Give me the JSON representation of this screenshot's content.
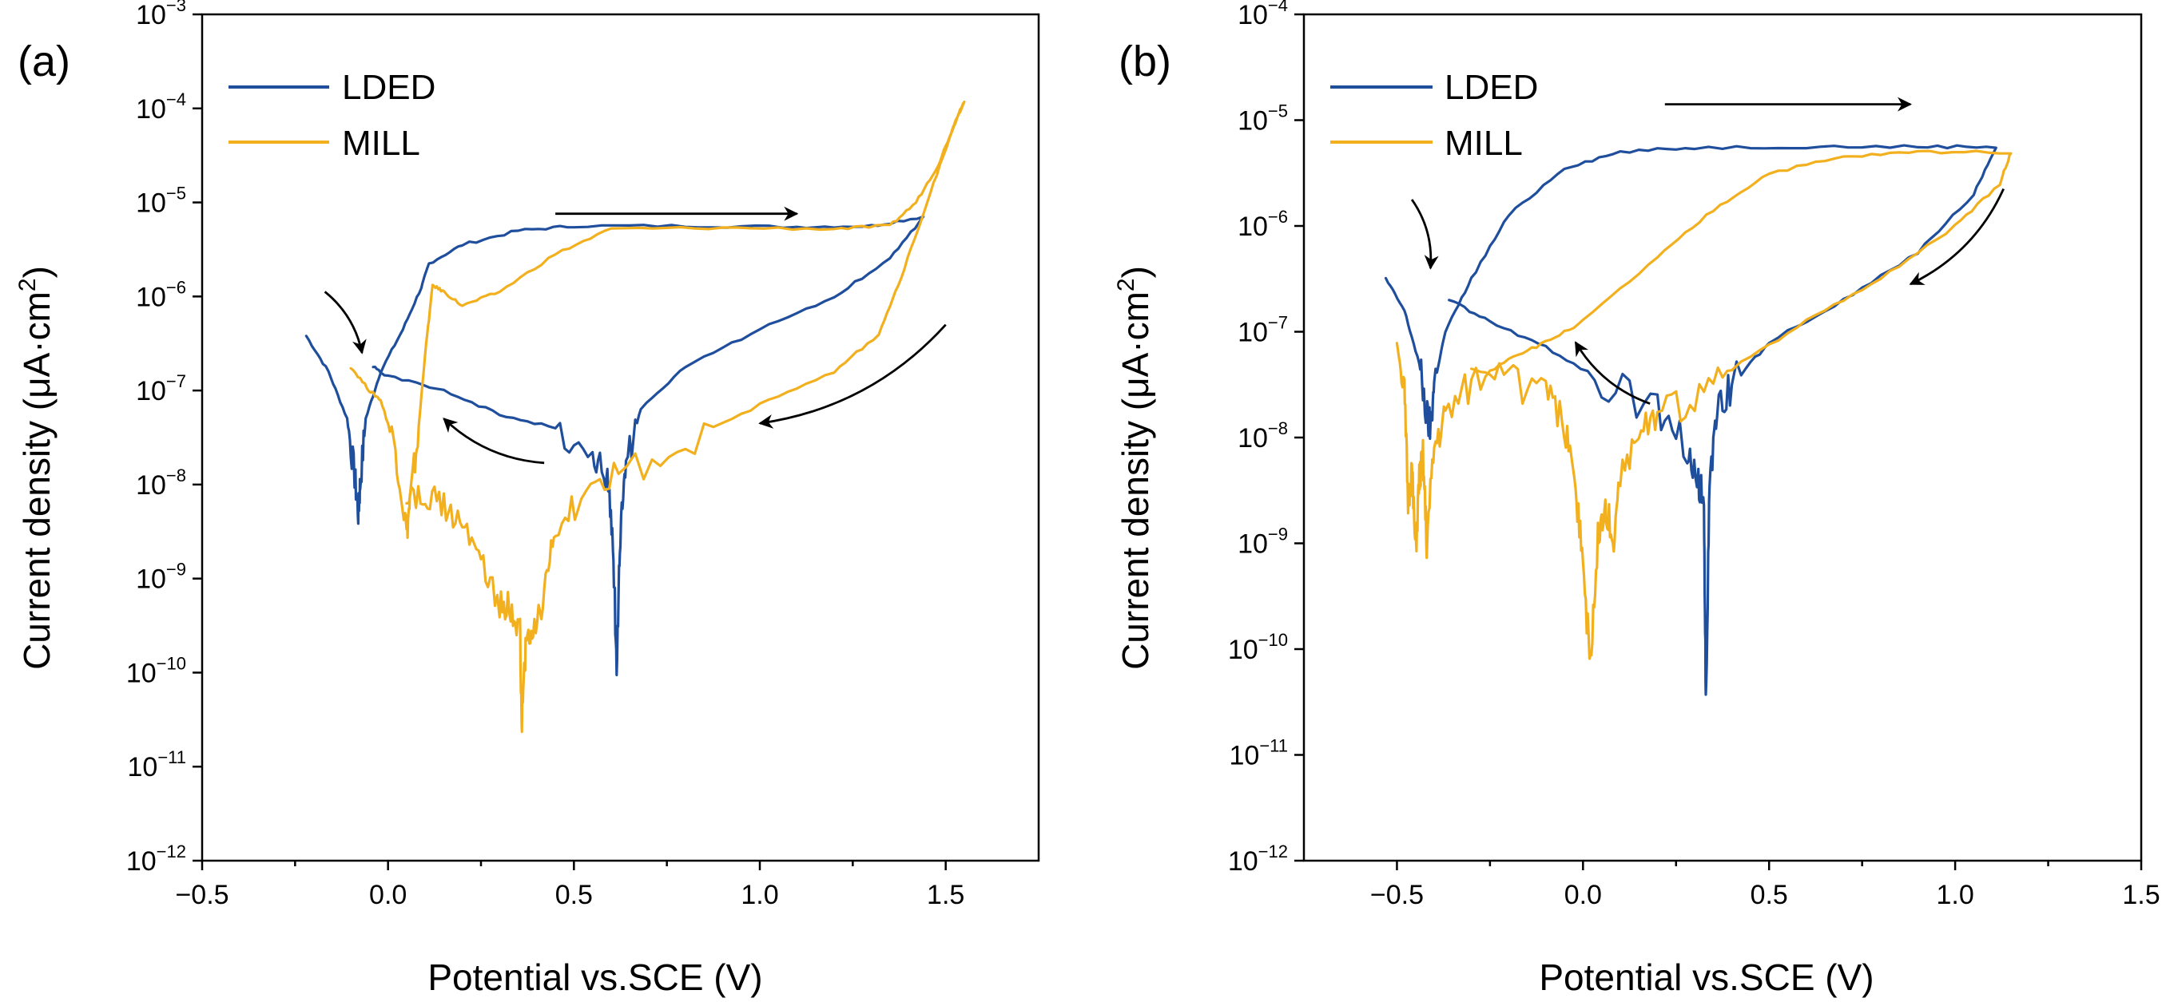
{
  "colors": {
    "LDED": "#1f4e9c",
    "MILL": "#f2b01e",
    "axis": "#000000"
  },
  "chart_data": [
    {
      "type": "line",
      "panel_label": "(a)",
      "xlabel": "Potential vs.SCE (V)",
      "ylabel": "Current density (μA·cm²)",
      "ylabel_main": "Current density (μA·cm",
      "ylabel_exp": "2",
      "ylabel_end": ")",
      "xscale": "linear",
      "yscale": "log",
      "xlim": [
        -0.5,
        1.75
      ],
      "ylim": [
        -12,
        -3
      ],
      "xticks": [
        -0.5,
        0.0,
        0.5,
        1.0,
        1.5
      ],
      "xtick_labels": [
        "−0.5",
        "0.0",
        "0.5",
        "1.0",
        "1.5"
      ],
      "yticks": [
        -12,
        -11,
        -10,
        -9,
        -8,
        -7,
        -6,
        -5,
        -4,
        -3
      ],
      "ytick_labels": [
        {
          "base": "10",
          "exp": "−12"
        },
        {
          "base": "10",
          "exp": "−11"
        },
        {
          "base": "10",
          "exp": "−10"
        },
        {
          "base": "10",
          "exp": "−9"
        },
        {
          "base": "10",
          "exp": "−8"
        },
        {
          "base": "10",
          "exp": "−7"
        },
        {
          "base": "10",
          "exp": "−6"
        },
        {
          "base": "10",
          "exp": "−5"
        },
        {
          "base": "10",
          "exp": "−4"
        },
        {
          "base": "10",
          "exp": "−3"
        }
      ],
      "legend": [
        "LDED",
        "MILL"
      ],
      "legend_loc": "top-left",
      "series": [
        {
          "name": "LDED",
          "color": "#1f4e9c",
          "points": [
            [
              -0.22,
              -6.42
            ],
            [
              -0.16,
              -6.8
            ],
            [
              -0.11,
              -7.3
            ],
            [
              -0.09,
              -7.9
            ],
            [
              -0.08,
              -8.3
            ],
            [
              -0.075,
              -8.0
            ],
            [
              -0.06,
              -7.3
            ],
            [
              -0.02,
              -6.8
            ],
            [
              0.04,
              -6.35
            ],
            [
              0.09,
              -5.9
            ],
            [
              0.11,
              -5.65
            ],
            [
              0.2,
              -5.45
            ],
            [
              0.35,
              -5.3
            ],
            [
              0.5,
              -5.25
            ],
            [
              0.8,
              -5.25
            ],
            [
              1.1,
              -5.26
            ],
            [
              1.3,
              -5.25
            ],
            [
              1.44,
              -5.15
            ],
            [
              1.35,
              -5.6
            ],
            [
              1.2,
              -6.0
            ],
            [
              1.0,
              -6.35
            ],
            [
              0.8,
              -6.75
            ],
            [
              0.68,
              -7.2
            ],
            [
              0.64,
              -7.8
            ],
            [
              0.625,
              -8.5
            ],
            [
              0.615,
              -9.92
            ],
            [
              0.605,
              -8.6
            ],
            [
              0.59,
              -7.95
            ],
            [
              0.55,
              -7.65
            ],
            [
              0.45,
              -7.4
            ],
            [
              0.3,
              -7.25
            ],
            [
              0.15,
              -7.0
            ],
            [
              0.0,
              -6.85
            ],
            [
              -0.04,
              -6.75
            ]
          ]
        },
        {
          "name": "MILL",
          "color": "#f2b01e",
          "points": [
            [
              -0.1,
              -6.75
            ],
            [
              -0.05,
              -7.0
            ],
            [
              -0.02,
              -7.1
            ],
            [
              0.02,
              -7.6
            ],
            [
              0.05,
              -8.5
            ],
            [
              0.06,
              -8.15
            ],
            [
              0.08,
              -7.5
            ],
            [
              0.1,
              -6.6
            ],
            [
              0.12,
              -5.88
            ],
            [
              0.15,
              -5.95
            ],
            [
              0.2,
              -6.1
            ],
            [
              0.3,
              -5.95
            ],
            [
              0.45,
              -5.55
            ],
            [
              0.6,
              -5.28
            ],
            [
              0.9,
              -5.27
            ],
            [
              1.2,
              -5.28
            ],
            [
              1.35,
              -5.25
            ],
            [
              1.42,
              -5.0
            ],
            [
              1.48,
              -4.6
            ],
            [
              1.52,
              -4.2
            ],
            [
              1.55,
              -3.92
            ],
            [
              1.52,
              -4.2
            ],
            [
              1.45,
              -5.0
            ],
            [
              1.38,
              -5.8
            ],
            [
              1.32,
              -6.4
            ],
            [
              1.2,
              -6.8
            ],
            [
              1.0,
              -7.15
            ],
            [
              0.8,
              -7.55
            ],
            [
              0.62,
              -7.9
            ],
            [
              0.52,
              -8.15
            ],
            [
              0.45,
              -8.5
            ],
            [
              0.42,
              -9.2
            ],
            [
              0.39,
              -9.6
            ],
            [
              0.37,
              -9.75
            ],
            [
              0.36,
              -10.5
            ],
            [
              0.355,
              -9.6
            ],
            [
              0.33,
              -9.3
            ],
            [
              0.3,
              -9.25
            ],
            [
              0.25,
              -8.8
            ],
            [
              0.2,
              -8.4
            ],
            [
              0.15,
              -8.2
            ],
            [
              0.1,
              -8.15
            ],
            [
              0.05,
              -8.2
            ]
          ]
        }
      ],
      "arrows": [
        {
          "direction": "forward",
          "from": [
            0.45,
            -5.12
          ],
          "to": [
            1.1,
            -5.12
          ]
        },
        {
          "direction": "reverse",
          "from": [
            1.5,
            -6.3
          ],
          "to": [
            1.0,
            -7.35
          ]
        },
        {
          "direction": "reverse",
          "from": [
            0.42,
            -7.77
          ],
          "to": [
            0.15,
            -7.3
          ]
        },
        {
          "direction": "initial",
          "from": [
            -0.17,
            -5.95
          ],
          "to": [
            -0.07,
            -6.6
          ]
        }
      ]
    },
    {
      "type": "line",
      "panel_label": "(b)",
      "xlabel": "Potential vs.SCE (V)",
      "ylabel": "Current density (μA·cm²)",
      "ylabel_main": "Current density (μA·cm",
      "ylabel_exp": "2",
      "ylabel_end": ")",
      "xscale": "linear",
      "yscale": "log",
      "xlim": [
        -0.75,
        1.5
      ],
      "ylim": [
        -12,
        -4
      ],
      "xticks": [
        -0.5,
        0.0,
        0.5,
        1.0,
        1.5
      ],
      "xtick_labels": [
        "−0.5",
        "0.0",
        "0.5",
        "1.0",
        "1.5"
      ],
      "yticks": [
        -12,
        -11,
        -10,
        -9,
        -8,
        -7,
        -6,
        -5,
        -4
      ],
      "ytick_labels": [
        {
          "base": "10",
          "exp": "−12"
        },
        {
          "base": "10",
          "exp": "−11"
        },
        {
          "base": "10",
          "exp": "−10"
        },
        {
          "base": "10",
          "exp": "−9"
        },
        {
          "base": "10",
          "exp": "−8"
        },
        {
          "base": "10",
          "exp": "−7"
        },
        {
          "base": "10",
          "exp": "−6"
        },
        {
          "base": "10",
          "exp": "−5"
        },
        {
          "base": "10",
          "exp": "−4"
        }
      ],
      "legend": [
        "LDED",
        "MILL"
      ],
      "legend_loc": "top-left",
      "series": [
        {
          "name": "LDED",
          "color": "#1f4e9c",
          "points": [
            [
              -0.53,
              -6.5
            ],
            [
              -0.48,
              -6.8
            ],
            [
              -0.44,
              -7.3
            ],
            [
              -0.42,
              -7.8
            ],
            [
              -0.41,
              -7.9
            ],
            [
              -0.4,
              -7.5
            ],
            [
              -0.37,
              -7.0
            ],
            [
              -0.3,
              -6.5
            ],
            [
              -0.2,
              -5.9
            ],
            [
              -0.05,
              -5.45
            ],
            [
              0.1,
              -5.3
            ],
            [
              0.3,
              -5.26
            ],
            [
              0.6,
              -5.25
            ],
            [
              0.9,
              -5.25
            ],
            [
              1.11,
              -5.25
            ],
            [
              1.05,
              -5.7
            ],
            [
              0.9,
              -6.25
            ],
            [
              0.7,
              -6.7
            ],
            [
              0.5,
              -7.1
            ],
            [
              0.4,
              -7.5
            ],
            [
              0.36,
              -7.8
            ],
            [
              0.34,
              -8.4
            ],
            [
              0.33,
              -10.5
            ],
            [
              0.325,
              -8.6
            ],
            [
              0.31,
              -8.4
            ],
            [
              0.28,
              -8.1
            ],
            [
              0.2,
              -7.75
            ],
            [
              0.05,
              -7.45
            ],
            [
              -0.1,
              -7.15
            ],
            [
              -0.25,
              -6.9
            ],
            [
              -0.36,
              -6.7
            ]
          ]
        },
        {
          "name": "MILL",
          "color": "#f2b01e",
          "points": [
            [
              -0.5,
              -7.1
            ],
            [
              -0.48,
              -7.6
            ],
            [
              -0.47,
              -8.6
            ],
            [
              -0.46,
              -8.3
            ],
            [
              -0.45,
              -9.1
            ],
            [
              -0.44,
              -8.4
            ],
            [
              -0.43,
              -8.2
            ],
            [
              -0.42,
              -9.0
            ],
            [
              -0.4,
              -8.1
            ],
            [
              -0.37,
              -7.8
            ],
            [
              -0.3,
              -7.5
            ],
            [
              -0.2,
              -7.25
            ],
            [
              -0.1,
              -7.1
            ],
            [
              0.0,
              -6.9
            ],
            [
              0.2,
              -6.3
            ],
            [
              0.35,
              -5.85
            ],
            [
              0.5,
              -5.5
            ],
            [
              0.7,
              -5.35
            ],
            [
              0.9,
              -5.3
            ],
            [
              1.15,
              -5.3
            ],
            [
              1.12,
              -5.6
            ],
            [
              1.0,
              -6.0
            ],
            [
              0.8,
              -6.5
            ],
            [
              0.6,
              -6.9
            ],
            [
              0.4,
              -7.35
            ],
            [
              0.3,
              -7.6
            ],
            [
              0.2,
              -7.8
            ],
            [
              0.15,
              -8.0
            ],
            [
              0.1,
              -8.3
            ],
            [
              0.08,
              -9.0
            ],
            [
              0.06,
              -8.6
            ],
            [
              0.04,
              -8.9
            ],
            [
              0.02,
              -10.2
            ],
            [
              0.0,
              -9.2
            ],
            [
              -0.02,
              -8.5
            ],
            [
              -0.05,
              -7.9
            ],
            [
              -0.1,
              -7.6
            ],
            [
              -0.2,
              -7.45
            ],
            [
              -0.3,
              -7.35
            ]
          ]
        }
      ],
      "arrows": [
        {
          "direction": "forward",
          "from": [
            0.22,
            -4.85
          ],
          "to": [
            0.88,
            -4.85
          ]
        },
        {
          "direction": "reverse",
          "from": [
            1.13,
            -5.65
          ],
          "to": [
            0.88,
            -6.55
          ]
        },
        {
          "direction": "reverse",
          "from": [
            0.18,
            -7.68
          ],
          "to": [
            -0.02,
            -7.1
          ]
        },
        {
          "direction": "initial",
          "from": [
            -0.46,
            -5.75
          ],
          "to": [
            -0.41,
            -6.4
          ]
        }
      ]
    }
  ]
}
